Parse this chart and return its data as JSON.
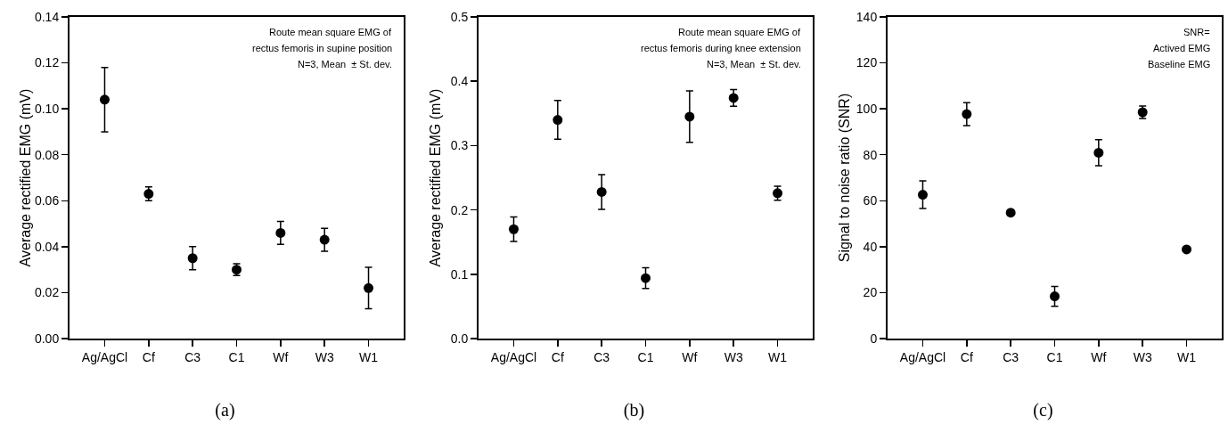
{
  "chart_data": [
    {
      "type": "scatter",
      "title": "(a)",
      "ylabel": "Average rectified EMG (mV)",
      "categories": [
        "Ag/AgCl",
        "Cf",
        "C3",
        "C1",
        "Wf",
        "W3",
        "W1"
      ],
      "marker": "circle",
      "grid": false,
      "series": [
        {
          "color": "#000000",
          "values": [
            0.104,
            0.063,
            0.035,
            0.03,
            0.046,
            0.043,
            0.022
          ],
          "errors": [
            0.014,
            0.003,
            0.005,
            0.0026,
            0.005,
            0.005,
            0.009
          ]
        }
      ],
      "ylim": [
        0,
        0.14
      ],
      "yticks": [
        {
          "value": 0,
          "label": "0.00"
        },
        {
          "value": 0.02,
          "label": "0.02"
        },
        {
          "value": 0.04,
          "label": "0.04"
        },
        {
          "value": 0.06,
          "label": "0.06"
        },
        {
          "value": 0.08,
          "label": "0.08"
        },
        {
          "value": 0.1,
          "label": "0.10"
        },
        {
          "value": 0.12,
          "label": "0.12"
        },
        {
          "value": 0.14,
          "label": "0.14"
        }
      ],
      "annotations": [
        "Route mean square EMG of",
        "rectus femoris in supine position",
        "N=3, Mean  ± St. dev."
      ]
    },
    {
      "type": "scatter",
      "title": "(b)",
      "ylabel": "Average rectified EMG (mV)",
      "categories": [
        "Ag/AgCl",
        "Cf",
        "C3",
        "C1",
        "Wf",
        "W3",
        "W1"
      ],
      "marker": "circle",
      "grid": false,
      "series": [
        {
          "color": "#000000",
          "values": [
            0.17,
            0.34,
            0.228,
            0.094,
            0.345,
            0.374,
            0.226
          ],
          "errors": [
            0.019,
            0.03,
            0.027,
            0.016,
            0.04,
            0.013,
            0.011
          ]
        }
      ],
      "ylim": [
        0,
        0.5
      ],
      "yticks": [
        {
          "value": 0,
          "label": "0.0"
        },
        0.1,
        0.2,
        0.3,
        0.4,
        0.5
      ],
      "annotations": [
        "Route mean square EMG of",
        "rectus femoris during knee extension",
        "N=3, Mean  ± St. dev."
      ]
    },
    {
      "type": "scatter",
      "title": "(c)",
      "ylabel": "Signal to noise ratio (SNR)",
      "categories": [
        "Ag/AgCl",
        "Cf",
        "C3",
        "C1",
        "Wf",
        "W3",
        "W1"
      ],
      "marker": "circle",
      "grid": false,
      "series": [
        {
          "color": "#000000",
          "values": [
            62.6,
            97.7,
            54.8,
            18.4,
            80.9,
            98.5,
            38.8
          ],
          "errors": [
            6,
            5,
            null,
            4.3,
            5.7,
            2.7,
            null
          ]
        }
      ],
      "ylim": [
        0,
        140
      ],
      "yticks": [
        0,
        20,
        40,
        60,
        80,
        100,
        120,
        140
      ],
      "annotations": [
        "SNR=",
        "Actived EMG",
        "Baseline EMG"
      ]
    }
  ]
}
